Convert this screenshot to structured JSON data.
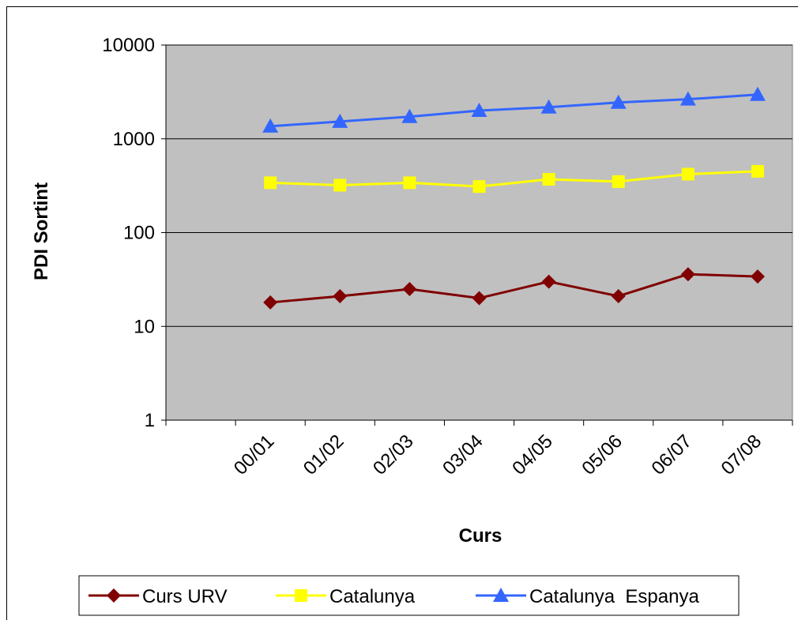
{
  "chart_data": {
    "type": "line",
    "log": true,
    "grid": true,
    "legend": "bottom",
    "ylabel": "PDI Sortint",
    "xlabel": "Curs",
    "categories": [
      null,
      "00/01",
      "01/02",
      "02/03",
      "03/04",
      "04/05",
      "05/06",
      "06/07",
      "07/08"
    ],
    "ylim": [
      1,
      10000
    ],
    "yticks": [
      1,
      10,
      100,
      1000,
      10000
    ],
    "series": [
      {
        "name": "Curs URV",
        "color": "#800000",
        "marker": "diamond",
        "values": [
          null,
          18,
          21,
          25,
          20,
          30,
          21,
          36,
          34
        ]
      },
      {
        "name": "Catalunya",
        "color": "#ffff00",
        "marker": "square",
        "values": [
          null,
          340,
          320,
          340,
          310,
          370,
          350,
          420,
          450
        ]
      },
      {
        "name": "Catalunya  Espanya",
        "color": "#3366ff",
        "marker": "triangle",
        "values": [
          null,
          1360,
          1530,
          1720,
          2000,
          2170,
          2440,
          2640,
          2960
        ]
      }
    ]
  }
}
